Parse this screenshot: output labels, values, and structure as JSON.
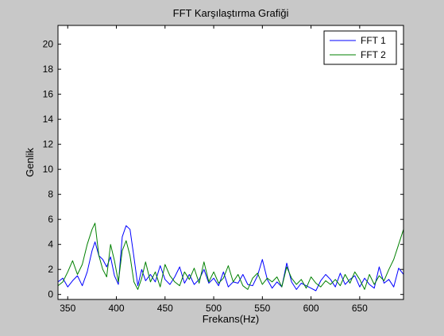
{
  "chart_data": {
    "type": "line",
    "title": "FFT Karşılaştırma Grafiği",
    "xlabel": "Frekans(Hz)",
    "ylabel": "Genlik",
    "xlim": [
      340,
      695
    ],
    "ylim": [
      -0.4,
      21.5
    ],
    "xticks": [
      350,
      400,
      450,
      500,
      550,
      600,
      650
    ],
    "yticks": [
      0,
      2,
      4,
      6,
      8,
      10,
      12,
      14,
      16,
      18,
      20
    ],
    "grid": false,
    "legend_position": "top-right",
    "background_color": "#c8c8c8",
    "plot_background": "#ffffff",
    "series": [
      {
        "name": "FFT 1",
        "color": "#0000ff",
        "x": [
          340,
          345,
          350,
          355,
          360,
          365,
          370,
          375,
          378,
          382,
          386,
          390,
          394,
          398,
          402,
          406,
          410,
          414,
          418,
          422,
          426,
          430,
          435,
          440,
          445,
          450,
          455,
          460,
          465,
          470,
          475,
          480,
          485,
          490,
          495,
          500,
          505,
          510,
          515,
          520,
          525,
          530,
          535,
          540,
          545,
          550,
          555,
          560,
          565,
          570,
          575,
          580,
          585,
          590,
          595,
          600,
          605,
          610,
          615,
          620,
          625,
          630,
          635,
          640,
          645,
          650,
          655,
          660,
          665,
          670,
          675,
          680,
          685,
          690,
          695
        ],
        "y": [
          1.0,
          1.3,
          0.6,
          1.1,
          1.5,
          0.7,
          1.8,
          3.5,
          4.2,
          3.1,
          2.8,
          2.2,
          3.0,
          1.5,
          0.8,
          4.6,
          5.5,
          5.2,
          3.0,
          0.7,
          2.0,
          1.1,
          1.6,
          1.0,
          2.3,
          1.2,
          0.8,
          1.4,
          2.2,
          0.9,
          1.6,
          0.8,
          1.2,
          2.0,
          0.9,
          1.3,
          0.7,
          1.8,
          0.6,
          1.0,
          0.9,
          1.6,
          0.8,
          0.7,
          1.5,
          2.8,
          1.2,
          0.5,
          1.0,
          0.6,
          2.5,
          1.0,
          0.4,
          0.9,
          0.7,
          0.5,
          0.3,
          1.1,
          1.6,
          1.2,
          0.6,
          1.7,
          0.8,
          1.2,
          1.5,
          0.6,
          1.3,
          0.8,
          0.5,
          2.2,
          0.9,
          1.2,
          0.6,
          2.1,
          1.6
        ]
      },
      {
        "name": "FFT 2",
        "color": "#008000",
        "x": [
          340,
          345,
          350,
          355,
          360,
          365,
          370,
          375,
          378,
          382,
          386,
          390,
          394,
          398,
          402,
          406,
          410,
          414,
          418,
          422,
          426,
          430,
          435,
          440,
          445,
          450,
          455,
          460,
          465,
          470,
          475,
          480,
          485,
          490,
          495,
          500,
          505,
          510,
          515,
          520,
          525,
          530,
          535,
          540,
          545,
          550,
          555,
          560,
          565,
          570,
          575,
          580,
          585,
          590,
          595,
          600,
          605,
          610,
          615,
          620,
          625,
          630,
          635,
          640,
          645,
          650,
          655,
          660,
          665,
          670,
          675,
          680,
          685,
          690,
          695
        ],
        "y": [
          0.7,
          1.0,
          1.8,
          2.7,
          1.6,
          2.4,
          4.0,
          5.2,
          5.7,
          3.1,
          2.0,
          1.4,
          4.0,
          2.7,
          1.0,
          3.5,
          4.3,
          3.1,
          1.0,
          0.4,
          1.3,
          2.6,
          1.0,
          1.8,
          0.6,
          2.4,
          1.5,
          1.0,
          0.7,
          1.8,
          1.2,
          2.1,
          0.9,
          2.6,
          1.0,
          1.8,
          0.9,
          1.3,
          2.3,
          1.0,
          1.6,
          0.7,
          0.4,
          1.3,
          1.7,
          0.8,
          1.3,
          1.0,
          1.4,
          0.6,
          2.2,
          1.3,
          0.8,
          1.2,
          0.5,
          1.4,
          0.9,
          0.6,
          1.1,
          0.8,
          1.2,
          0.7,
          1.6,
          0.9,
          1.8,
          1.2,
          0.4,
          1.6,
          0.8,
          1.5,
          1.1,
          2.0,
          2.8,
          4.0,
          5.2
        ]
      }
    ]
  }
}
